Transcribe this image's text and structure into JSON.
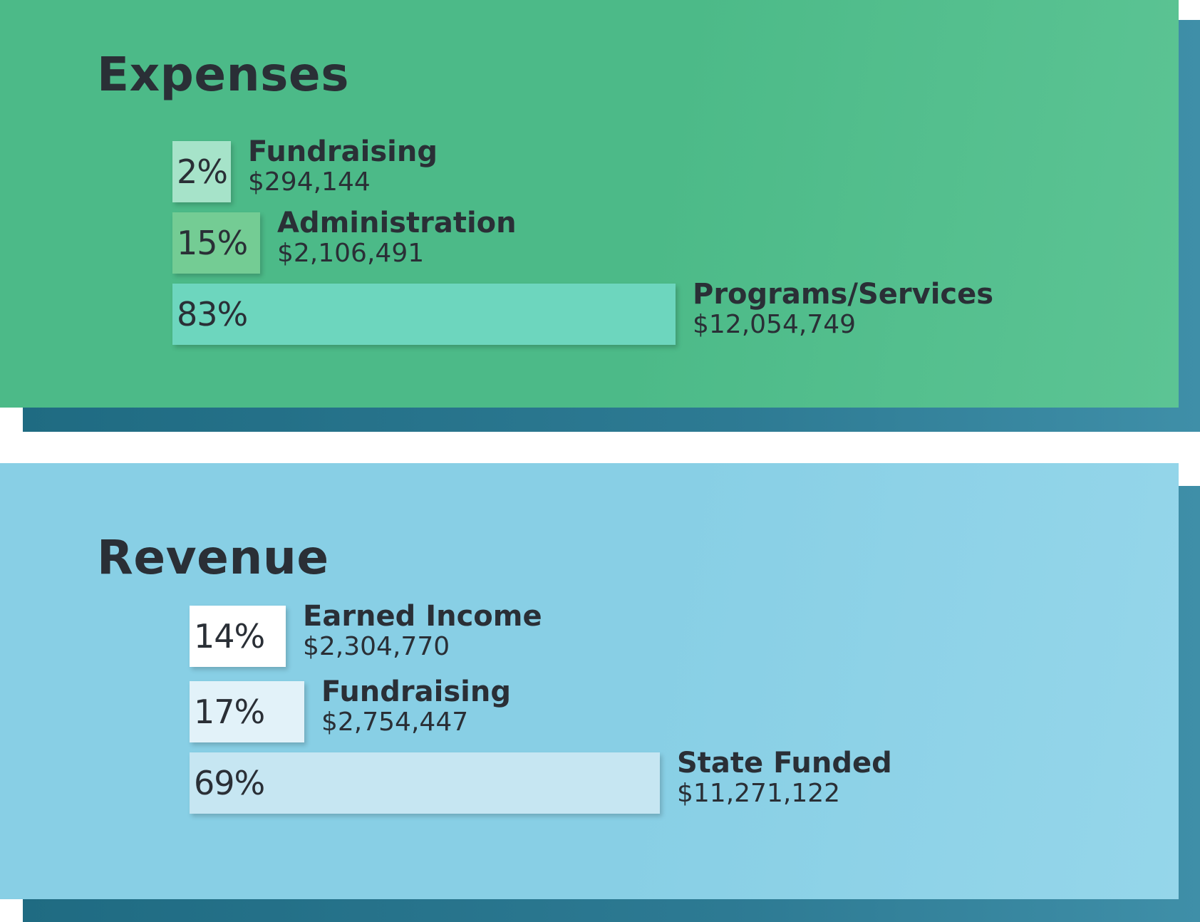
{
  "colors": {
    "text": "#2a2f36",
    "shadow": "#2b6f86"
  },
  "chart_data": [
    {
      "type": "bar",
      "orientation": "horizontal",
      "title": "Expenses",
      "panel_color": "#4cba88",
      "categories": [
        "Fundraising",
        "Administration",
        "Programs/Services"
      ],
      "values": [
        294144,
        2106491,
        12054749
      ],
      "value_labels": [
        "$294,144",
        "$2,106,491",
        "$12,054,749"
      ],
      "percent_labels": [
        "2%",
        "15%",
        "83%"
      ],
      "bar_colors": [
        "#a6e3c9",
        "#74cc94",
        "#6dd6be"
      ]
    },
    {
      "type": "bar",
      "orientation": "horizontal",
      "title": "Revenue",
      "panel_color": "#88cfe5",
      "categories": [
        "Earned Income",
        "Fundraising",
        "State Funded"
      ],
      "values": [
        2304770,
        2754447,
        11271122
      ],
      "value_labels": [
        "$2,304,770",
        "$2,754,447",
        "$11,271,122"
      ],
      "percent_labels": [
        "14%",
        "17%",
        "69%"
      ],
      "bar_colors": [
        "#ffffff",
        "#e2f2f9",
        "#c6e6f2"
      ]
    }
  ]
}
